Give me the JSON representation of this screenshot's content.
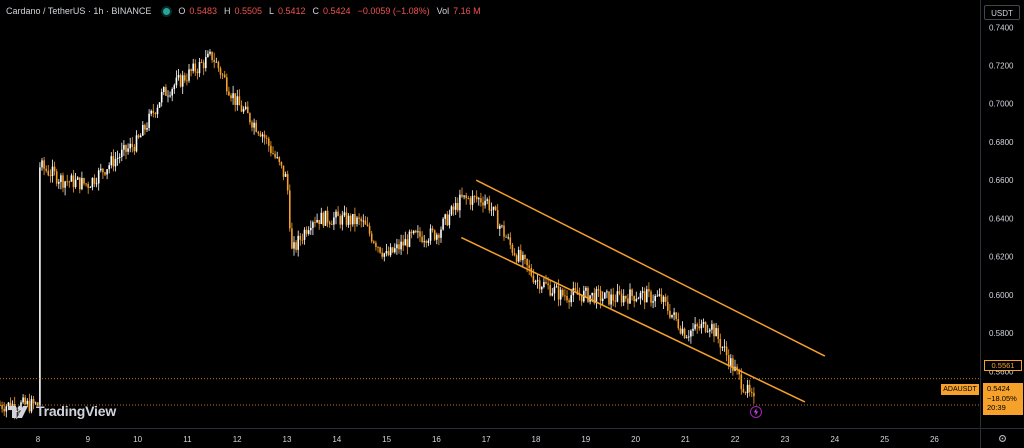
{
  "legend": {
    "symbol": "Cardano / TetherUS · 1h · BINANCE",
    "open_label": "O",
    "open": "0.5483",
    "high_label": "H",
    "high": "0.5505",
    "low_label": "L",
    "low": "0.5412",
    "close_label": "C",
    "close": "0.5424",
    "change": "−0.0059 (−1.08%)",
    "vol_label": "Vol",
    "vol": "7.16 M"
  },
  "price_scale": {
    "unit": "USDT",
    "ticks": [
      "0.7400",
      "0.7200",
      "0.7000",
      "0.6800",
      "0.6600",
      "0.6400",
      "0.6200",
      "0.6000",
      "0.5800",
      "0.5600"
    ]
  },
  "time_scale": {
    "ticks": [
      "8",
      "9",
      "10",
      "11",
      "12",
      "13",
      "14",
      "15",
      "16",
      "17",
      "18",
      "19",
      "20",
      "21",
      "22",
      "23",
      "24",
      "25",
      "26"
    ]
  },
  "price_tags": {
    "line_price": "0.5561",
    "symbol_tag": "ADAUSDT",
    "last_price": "0.5424",
    "last_change": "−18.05%",
    "countdown": "20:39"
  },
  "brand": {
    "name": "TradingView"
  },
  "colors": {
    "orange": "#f5a12a",
    "bull": "#ffffff",
    "bear": "#f5a12a",
    "background": "#000000"
  },
  "icons": {
    "settings": "gear-icon",
    "alert": "lightning-icon"
  },
  "chart_data": {
    "type": "candlestick",
    "instrument": "Cardano / TetherUS",
    "interval": "1h",
    "exchange": "BINANCE",
    "ylim": [
      0.545,
      0.748
    ],
    "x_ticks": [
      "8",
      "9",
      "10",
      "11",
      "12",
      "13",
      "14",
      "15",
      "16",
      "17",
      "18",
      "19",
      "20",
      "21",
      "22",
      "23",
      "24",
      "25",
      "26"
    ],
    "close_series": [
      [
        "8",
        0.668
      ],
      [
        "8.5",
        0.66
      ],
      [
        "9",
        0.658
      ],
      [
        "9.5",
        0.67
      ],
      [
        "10",
        0.68
      ],
      [
        "10.5",
        0.705
      ],
      [
        "11",
        0.715
      ],
      [
        "11.5",
        0.725
      ],
      [
        "12",
        0.7
      ],
      [
        "12.5",
        0.685
      ],
      [
        "13",
        0.66
      ],
      [
        "13.1",
        0.622
      ],
      [
        "13.5",
        0.64
      ],
      [
        "14",
        0.64
      ],
      [
        "14.5",
        0.638
      ],
      [
        "15",
        0.62
      ],
      [
        "15.5",
        0.63
      ],
      [
        "16",
        0.632
      ],
      [
        "16.5",
        0.65
      ],
      [
        "17",
        0.65
      ],
      [
        "17.5",
        0.625
      ],
      [
        "18",
        0.608
      ],
      [
        "18.5",
        0.6
      ],
      [
        "19",
        0.6
      ],
      [
        "19.5",
        0.598
      ],
      [
        "20",
        0.6
      ],
      [
        "20.5",
        0.598
      ],
      [
        "21",
        0.58
      ],
      [
        "21.5",
        0.585
      ],
      [
        "22",
        0.56
      ],
      [
        "22.4",
        0.5424
      ]
    ],
    "drawings": [
      {
        "type": "trendline",
        "from": [
          "16.8",
          0.66
        ],
        "to": [
          "23.8",
          0.568
        ]
      },
      {
        "type": "trendline",
        "from": [
          "16.5",
          0.63
        ],
        "to": [
          "23.4",
          0.544
        ]
      }
    ],
    "horizontal_lines": [
      0.5561,
      0.5424
    ]
  }
}
